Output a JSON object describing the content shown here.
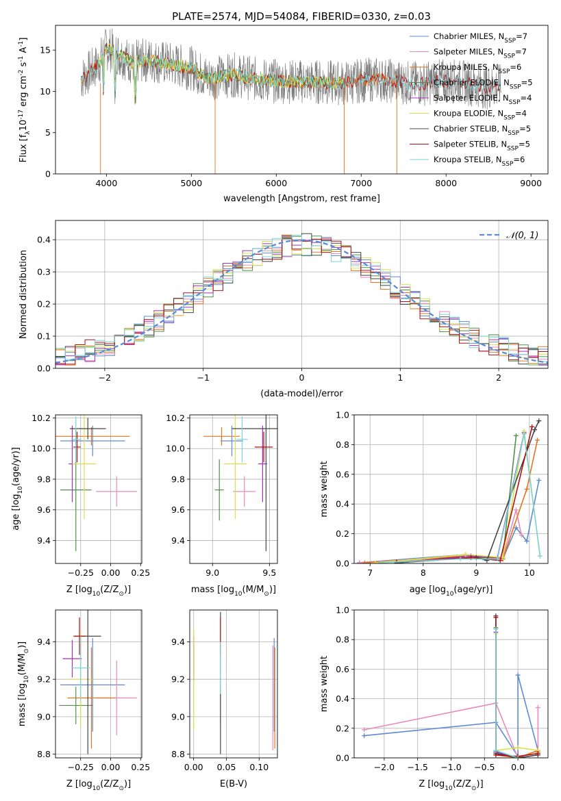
{
  "title": "PLATE=2574, MJD=54084, FIBERID=0330, z=0.03",
  "colors": {
    "Chabrier MILES": "#5b8ad6",
    "Salpeter MILES": "#e88ab9",
    "Kroupa MILES": "#e6731e",
    "Chabrier ELODIE": "#4f8f4a",
    "Salpeter ELODIE": "#a12fbd",
    "Kroupa ELODIE": "#d9e04c",
    "Chabrier STELIB": "#444444",
    "Salpeter STELIB": "#b01010",
    "Kroupa STELIB": "#79d4d8",
    "normal": "#5b8ad6"
  },
  "chart_data": [
    {
      "id": "spectrum",
      "type": "line",
      "xlabel": "wavelength [Angstrom, rest frame]",
      "ylabel": "Flux [f",
      "ylabel_sub": "λ",
      "ylabel_rest": "10",
      "ylabel_sup1": "-17",
      "ylabel_tail": " erg cm",
      "ylabel_sup2": "-2",
      "ylabel_tail2": " s",
      "ylabel_sup3": "-1",
      "ylabel_tail3": " A",
      "ylabel_sup4": "-1",
      "ylabel_end": "]",
      "xlim": [
        3400,
        9200
      ],
      "ylim": [
        0,
        18
      ],
      "xticks": [
        "4000",
        "5000",
        "6000",
        "7000",
        "8000",
        "9000"
      ],
      "xtick_values": [
        4000,
        5000,
        6000,
        7000,
        8000,
        9000
      ],
      "yticks": [
        "0",
        "5",
        "10",
        "15"
      ],
      "ytick_values": [
        0,
        5,
        10,
        15
      ],
      "legend": [
        {
          "name": "Chabrier MILES",
          "nssp": "7"
        },
        {
          "name": "Salpeter MILES",
          "nssp": "7"
        },
        {
          "name": "Kroupa MILES",
          "nssp": "6"
        },
        {
          "name": "Chabrier ELODIE",
          "nssp": "5"
        },
        {
          "name": "Salpeter ELODIE",
          "nssp": "4"
        },
        {
          "name": "Kroupa ELODIE",
          "nssp": "4"
        },
        {
          "name": "Chabrier STELIB",
          "nssp": "5"
        },
        {
          "name": "Salpeter STELIB",
          "nssp": "5"
        },
        {
          "name": "Kroupa STELIB",
          "nssp": "6"
        }
      ],
      "legend_nssp_label": "N",
      "legend_nssp_sub": "SSP",
      "legend_position": "top-right",
      "series_extent": {
        "data": [
          3700,
          7420
        ],
        "MILES": [
          3700,
          7420
        ],
        "ELODIE": [
          3900,
          6800
        ],
        "STELIB": [
          3700,
          8650
        ]
      },
      "continuum": [
        [
          3700,
          11.5
        ],
        [
          3900,
          13.2
        ],
        [
          4000,
          15.2
        ],
        [
          4100,
          14.8
        ],
        [
          4300,
          13.5
        ],
        [
          4500,
          13.8
        ],
        [
          4800,
          13.2
        ],
        [
          5000,
          12.8
        ],
        [
          5200,
          11.6
        ],
        [
          5500,
          12.0
        ],
        [
          5800,
          11.4
        ],
        [
          6000,
          11.2
        ],
        [
          6300,
          11.2
        ],
        [
          6560,
          11.1
        ],
        [
          6800,
          11.0
        ],
        [
          7000,
          11.3
        ],
        [
          7200,
          11.5
        ],
        [
          7400,
          11.2
        ],
        [
          7700,
          10.9
        ],
        [
          8000,
          11.3
        ],
        [
          8200,
          11.1
        ],
        [
          8500,
          10.5
        ],
        [
          8650,
          10.6
        ]
      ],
      "dropouts": [
        [
          3930,
          0
        ],
        [
          5280,
          0
        ],
        [
          6800,
          0
        ],
        [
          7420,
          0
        ]
      ]
    },
    {
      "id": "residuals",
      "type": "area",
      "xlabel": "(data-model)/error",
      "ylabel": "Normed distribution",
      "xlim": [
        -2.5,
        2.5
      ],
      "ylim": [
        0,
        0.46
      ],
      "xticks": [
        "−2",
        "−1",
        "0",
        "1",
        "2"
      ],
      "xtick_values": [
        -2,
        -1,
        0,
        1,
        2
      ],
      "yticks": [
        "0.0",
        "0.1",
        "0.2",
        "0.3",
        "0.4"
      ],
      "ytick_values": [
        0,
        0.1,
        0.2,
        0.3,
        0.4
      ],
      "grid": true,
      "legend_label": "𝒩(0, 1)",
      "legend_position": "top-right",
      "bin_width": 0.1
    },
    {
      "id": "age-vs-Z",
      "type": "scatter",
      "xlabel": "Z [log",
      "xlabel_sub": "10",
      "xlabel_rest": "(Z/Z",
      "xlabel_sub2": "⊙",
      "xlabel_end": ")]",
      "ylabel": "age  [log",
      "ylabel_sub": "10",
      "ylabel_rest": "(age/yr)]",
      "xlim": [
        -0.46,
        0.26
      ],
      "ylim": [
        9.25,
        10.22
      ],
      "xticks": [
        "−0.25",
        "0.00",
        "0.25"
      ],
      "xtick_values": [
        -0.25,
        0,
        0.25
      ],
      "yticks": [
        "9.4",
        "9.6",
        "9.8",
        "10.0",
        "10.2"
      ],
      "ytick_values": [
        9.4,
        9.6,
        9.8,
        10.0,
        10.2
      ],
      "grid": true,
      "points": [
        {
          "s": "Chabrier MILES",
          "x": -0.15,
          "y": 10.05,
          "xe": 0.27,
          "ye": 0.1
        },
        {
          "s": "Salpeter MILES",
          "x": 0.05,
          "y": 9.72,
          "xe": 0.17,
          "ye": 0.1
        },
        {
          "s": "Kroupa MILES",
          "x": -0.16,
          "y": 10.08,
          "xe": 0.32,
          "ye": 0.06
        },
        {
          "s": "Chabrier ELODIE",
          "x": -0.29,
          "y": 9.73,
          "xe": 0.13,
          "ye": 0.4
        },
        {
          "s": "Salpeter ELODIE",
          "x": -0.32,
          "y": 9.9,
          "xe": 0.03,
          "ye": 0.25
        },
        {
          "s": "Kroupa ELODIE",
          "x": -0.22,
          "y": 9.9,
          "xe": 0.1,
          "ye": 0.36
        },
        {
          "s": "Chabrier STELIB",
          "x": -0.19,
          "y": 10.13,
          "xe": 0.15,
          "ye": 0.07
        },
        {
          "s": "Salpeter STELIB",
          "x": -0.28,
          "y": 10.01,
          "xe": 0.03,
          "ye": 0.1
        },
        {
          "s": "Kroupa STELIB",
          "x": -0.29,
          "y": 10.06,
          "xe": 0.04,
          "ye": 0.15
        }
      ]
    },
    {
      "id": "age-vs-mass",
      "type": "scatter",
      "xlabel": "mass [log",
      "xlabel_sub": "10",
      "xlabel_rest": "(M/M",
      "xlabel_sub2": "⊙",
      "xlabel_end": ")]",
      "xlim": [
        8.8,
        9.57
      ],
      "ylim": [
        9.25,
        10.22
      ],
      "xticks": [
        "9.0",
        "9.5"
      ],
      "xtick_values": [
        9.0,
        9.5
      ],
      "yticks": [
        "9.4",
        "9.6",
        "9.8",
        "10.0",
        "10.2"
      ],
      "ytick_values": [
        9.4,
        9.6,
        9.8,
        10.0,
        10.2
      ],
      "grid": true,
      "points": [
        {
          "s": "Chabrier MILES",
          "x": 9.17,
          "y": 10.05,
          "xe": 0.1,
          "ye": 0.1
        },
        {
          "s": "Salpeter MILES",
          "x": 9.28,
          "y": 9.72,
          "xe": 0.1,
          "ye": 0.1
        },
        {
          "s": "Kroupa MILES",
          "x": 9.08,
          "y": 10.08,
          "xe": 0.16,
          "ye": 0.06
        },
        {
          "s": "Chabrier ELODIE",
          "x": 9.06,
          "y": 9.73,
          "xe": 0.04,
          "ye": 0.2
        },
        {
          "s": "Salpeter ELODIE",
          "x": 9.44,
          "y": 9.9,
          "xe": 0.04,
          "ye": 0.25
        },
        {
          "s": "Kroupa ELODIE",
          "x": 9.2,
          "y": 9.9,
          "xe": 0.1,
          "ye": 0.36
        },
        {
          "s": "Chabrier STELIB",
          "x": 9.47,
          "y": 10.13,
          "xe": 0.3,
          "ye": 0.8
        },
        {
          "s": "Salpeter STELIB",
          "x": 9.45,
          "y": 10.01,
          "xe": 0.08,
          "ye": 0.1
        },
        {
          "s": "Kroupa STELIB",
          "x": 9.26,
          "y": 10.06,
          "xe": 0.05,
          "ye": 0.15
        }
      ]
    },
    {
      "id": "weight-vs-age",
      "type": "line",
      "xlabel": "age  [log",
      "xlabel_sub": "10",
      "xlabel_rest": "(age/yr)]",
      "ylabel": "mass weight",
      "xlim": [
        6.7,
        10.35
      ],
      "ylim": [
        0,
        1.0
      ],
      "xticks": [
        "7",
        "8",
        "9",
        "10"
      ],
      "xtick_values": [
        7,
        8,
        9,
        10
      ],
      "yticks": [
        "0.0",
        "0.2",
        "0.4",
        "0.6",
        "0.8",
        "1.0"
      ],
      "ytick_values": [
        0,
        0.2,
        0.4,
        0.6,
        0.8,
        1.0
      ],
      "grid": true,
      "series": [
        {
          "name": "Chabrier MILES",
          "x": [
            6.8,
            8.8,
            9.5,
            9.75,
            9.95,
            10.18
          ],
          "y": [
            0.005,
            0.06,
            0.03,
            0.24,
            0.15,
            0.56
          ]
        },
        {
          "name": "Salpeter MILES",
          "x": [
            6.8,
            8.8,
            9.5,
            9.75,
            9.85
          ],
          "y": [
            0.005,
            0.05,
            0.04,
            0.36,
            0.19
          ]
        },
        {
          "name": "Kroupa MILES",
          "x": [
            6.9,
            8.8,
            9.5,
            9.95,
            10.15
          ],
          "y": [
            0.004,
            0.05,
            0.03,
            0.5,
            0.83
          ]
        },
        {
          "name": "Chabrier ELODIE",
          "x": [
            7.5,
            8.9,
            9.5,
            9.75
          ],
          "y": [
            0.004,
            0.04,
            0.04,
            0.86
          ]
        },
        {
          "name": "Salpeter ELODIE",
          "x": [
            7.5,
            8.9,
            9.4,
            9.9
          ],
          "y": [
            0.004,
            0.05,
            0.04,
            0.88
          ]
        },
        {
          "name": "Kroupa ELODIE",
          "x": [
            7.1,
            8.8,
            9.5,
            9.9,
            10.2
          ],
          "y": [
            0.004,
            0.06,
            0.04,
            0.89,
            0.05
          ]
        },
        {
          "name": "Chabrier STELIB",
          "x": [
            7.5,
            9.0,
            9.2,
            10.1,
            10.18
          ],
          "y": [
            0.004,
            0.04,
            0.02,
            0.9,
            0.96
          ]
        },
        {
          "name": "Salpeter STELIB",
          "x": [
            7.5,
            8.9,
            9.45,
            10.05
          ],
          "y": [
            0.01,
            0.04,
            0.02,
            0.92
          ]
        },
        {
          "name": "Kroupa STELIB",
          "x": [
            7.2,
            8.7,
            9.4,
            9.9,
            10.2
          ],
          "y": [
            0.005,
            0.03,
            0.03,
            0.87,
            0.05
          ]
        }
      ]
    },
    {
      "id": "mass-vs-Z",
      "type": "scatter",
      "xlabel": "Z [log",
      "xlabel_sub": "10",
      "xlabel_rest": "(Z/Z",
      "xlabel_sub2": "⊙",
      "xlabel_end": ")]",
      "ylabel": "mass [log",
      "ylabel_sub": "10",
      "ylabel_rest": "(M/M",
      "ylabel_sub2": "⊙",
      "ylabel_end": ")]",
      "xlim": [
        -0.46,
        0.26
      ],
      "ylim": [
        8.78,
        9.57
      ],
      "xticks": [
        "−0.25",
        "0.00",
        "0.25"
      ],
      "xtick_values": [
        -0.25,
        0,
        0.25
      ],
      "yticks": [
        "8.8",
        "9.0",
        "9.2",
        "9.4"
      ],
      "ytick_values": [
        8.8,
        9.0,
        9.2,
        9.4
      ],
      "grid": true,
      "points": [
        {
          "s": "Chabrier MILES",
          "x": -0.15,
          "y": 9.17,
          "xe": 0.27,
          "ye": 0.25
        },
        {
          "s": "Salpeter MILES",
          "x": 0.05,
          "y": 9.1,
          "xe": 0.17,
          "ye": 0.2
        },
        {
          "s": "Kroupa MILES",
          "x": -0.16,
          "y": 9.1,
          "xe": 0.2,
          "ye": 0.27
        },
        {
          "s": "Chabrier ELODIE",
          "x": -0.29,
          "y": 9.06,
          "xe": 0.14,
          "ye": 0.1
        },
        {
          "s": "Salpeter ELODIE",
          "x": -0.32,
          "y": 9.31,
          "xe": 0.08,
          "ye": 0.1
        },
        {
          "s": "Kroupa ELODIE",
          "x": -0.25,
          "y": 9.2,
          "xe": 0.1,
          "ye": 0.25
        },
        {
          "s": "Chabrier STELIB",
          "x": -0.19,
          "y": 9.43,
          "xe": 0.11,
          "ye": 0.63
        },
        {
          "s": "Salpeter STELIB",
          "x": -0.26,
          "y": 9.43,
          "xe": 0.05,
          "ye": 0.1
        },
        {
          "s": "Kroupa STELIB",
          "x": -0.25,
          "y": 9.26,
          "xe": 0.08,
          "ye": 0.17
        }
      ]
    },
    {
      "id": "mass-vs-ebv",
      "type": "scatter",
      "xlabel": "E(B-V)",
      "xlim": [
        -0.006,
        0.128
      ],
      "ylim": [
        8.78,
        9.57
      ],
      "xticks": [
        "0.00",
        "0.05",
        "0.10"
      ],
      "xtick_values": [
        0,
        0.05,
        0.1
      ],
      "yticks": [
        "8.8",
        "9.0",
        "9.2",
        "9.4"
      ],
      "ytick_values": [
        8.8,
        9.0,
        9.2,
        9.4
      ],
      "grid": true,
      "points": [
        {
          "s": "Chabrier MILES",
          "x": 0.123,
          "y": 9.17,
          "ye": 0.25
        },
        {
          "s": "Salpeter MILES",
          "x": 0.121,
          "y": 9.1,
          "ye": 0.28
        },
        {
          "s": "Kroupa MILES",
          "x": 0.124,
          "y": 9.1,
          "ye": 0.27
        },
        {
          "s": "Chabrier ELODIE",
          "x": 0.041,
          "y": 9.06,
          "ye": 0.1
        },
        {
          "s": "Salpeter ELODIE",
          "x": 0.0,
          "y": 9.31,
          "ye": 0.12
        },
        {
          "s": "Kroupa ELODIE",
          "x": 0.0,
          "y": 9.2,
          "ye": 0.27
        },
        {
          "s": "Chabrier STELIB",
          "x": 0.041,
          "y": 9.18,
          "ye": 0.38
        },
        {
          "s": "Salpeter STELIB",
          "x": 0.041,
          "y": 9.43,
          "ye": 0.1
        },
        {
          "s": "Kroupa STELIB",
          "x": 0.041,
          "y": 9.26,
          "ye": 0.14
        }
      ]
    },
    {
      "id": "weight-vs-Z",
      "type": "line",
      "xlabel": "Z [log",
      "xlabel_sub": "10",
      "xlabel_rest": "(Z/Z",
      "xlabel_sub2": "⊙",
      "xlabel_end": ")]",
      "ylabel": "mass weight",
      "xlim": [
        -2.45,
        0.45
      ],
      "ylim": [
        0,
        1.0
      ],
      "xticks": [
        "−2.0",
        "−1.5",
        "−1.0",
        "−0.5",
        "0.0"
      ],
      "xtick_values": [
        -2.0,
        -1.5,
        -1.0,
        -0.5,
        0.0
      ],
      "yticks": [
        "0.0",
        "0.2",
        "0.4",
        "0.6",
        "0.8",
        "1.0"
      ],
      "ytick_values": [
        0,
        0.2,
        0.4,
        0.6,
        0.8,
        1.0
      ],
      "grid": true,
      "series": [
        {
          "name": "Chabrier MILES",
          "x": [
            -2.3,
            -0.33,
            0.0,
            0.0,
            0.3,
            0.3
          ],
          "y": [
            0.15,
            0.24,
            0.01,
            0.56,
            0.05,
            0.02
          ]
        },
        {
          "name": "Salpeter MILES",
          "x": [
            -2.3,
            -0.33,
            0.0,
            0.3,
            0.3
          ],
          "y": [
            0.19,
            0.37,
            0.0,
            0.05,
            0.34
          ]
        },
        {
          "name": "Kroupa MILES",
          "x": [
            -0.33,
            0.0,
            0.3,
            0.3
          ],
          "y": [
            0.02,
            0.0,
            0.05,
            0.04
          ]
        },
        {
          "name": "Chabrier ELODIE",
          "x": [
            -0.33,
            -0.33,
            0.0
          ],
          "y": [
            0.88,
            0.04,
            0.0
          ]
        },
        {
          "name": "Salpeter ELODIE",
          "x": [
            -0.33,
            -0.33,
            0.0
          ],
          "y": [
            0.85,
            0.04,
            0.0
          ]
        },
        {
          "name": "Kroupa ELODIE",
          "x": [
            -0.33,
            -0.33,
            0.0,
            0.3
          ],
          "y": [
            0.84,
            0.05,
            0.07,
            0.05
          ]
        },
        {
          "name": "Chabrier STELIB",
          "x": [
            -0.33,
            -0.33,
            0.0,
            0.3
          ],
          "y": [
            0.96,
            0.03,
            0.0,
            0.02
          ]
        },
        {
          "name": "Salpeter STELIB",
          "x": [
            -0.33,
            -0.33,
            0.0,
            0.3
          ],
          "y": [
            0.95,
            0.02,
            0.01,
            0.03
          ]
        },
        {
          "name": "Kroupa STELIB",
          "x": [
            -0.33,
            -0.33,
            0.0
          ],
          "y": [
            0.87,
            0.05,
            0.0
          ]
        }
      ]
    }
  ]
}
